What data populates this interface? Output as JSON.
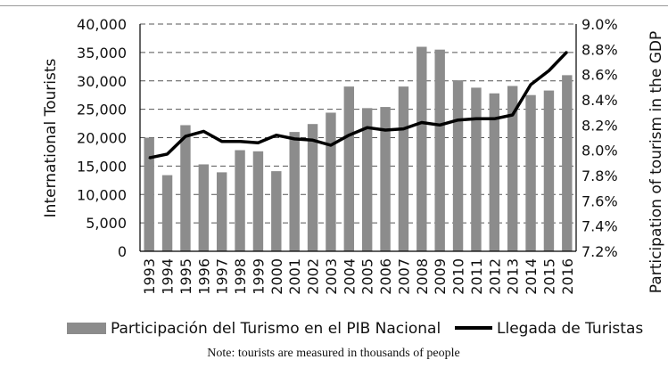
{
  "chart_data": {
    "type": "bar",
    "categories": [
      "1993",
      "1994",
      "1995",
      "1996",
      "1997",
      "1998",
      "1999",
      "2000",
      "2001",
      "2002",
      "2003",
      "2004",
      "2005",
      "2006",
      "2007",
      "2008",
      "2009",
      "2010",
      "2011",
      "2012",
      "2013",
      "2014",
      "2015",
      "2016"
    ],
    "series": [
      {
        "name": "Participación del Turismo en el PIB Nacional",
        "type": "bar",
        "axis": "left",
        "color": "#8c8c8c",
        "values": [
          20000,
          13400,
          22200,
          15300,
          13900,
          17800,
          17600,
          14100,
          21000,
          22400,
          24400,
          29000,
          25200,
          25400,
          29000,
          36000,
          35500,
          30100,
          28800,
          27800,
          29100,
          27500,
          28300,
          31000
        ]
      },
      {
        "name": "Llegada de Turistas",
        "type": "line",
        "axis": "right",
        "color": "#000000",
        "values": [
          7.94,
          7.97,
          8.11,
          8.15,
          8.07,
          8.07,
          8.06,
          8.12,
          8.09,
          8.08,
          8.04,
          8.12,
          8.18,
          8.16,
          8.17,
          8.22,
          8.2,
          8.24,
          8.25,
          8.25,
          8.28,
          8.52,
          8.63,
          8.78
        ]
      }
    ],
    "ylabel": "International Tourists",
    "ylim": [
      0,
      40000
    ],
    "yticks": [
      "0",
      "5,000",
      "10,000",
      "15,000",
      "20,000",
      "25,000",
      "30,000",
      "35,000",
      "40,000"
    ],
    "y2label": "Participation of tourism in the GDP",
    "y2lim": [
      7.2,
      9.0
    ],
    "y2ticks": [
      "7.2%",
      "7.4%",
      "7.6%",
      "7.8%",
      "8.0%",
      "8.2%",
      "8.4%",
      "8.6%",
      "8.8%",
      "9.0%"
    ],
    "grid": "horizontal dashed",
    "legend_position": "bottom",
    "note": "Note: tourists are measured in thousands of people"
  }
}
